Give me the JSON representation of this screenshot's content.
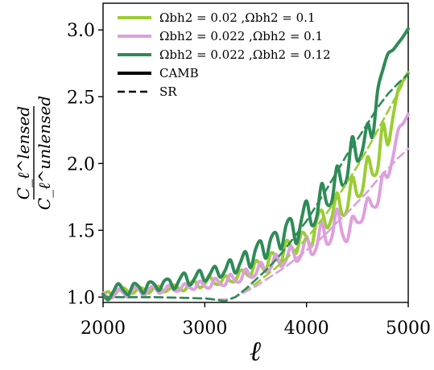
{
  "chart_data": {
    "type": "line",
    "xlabel": "ℓ",
    "ylabel_num": "C_ℓ^lensed",
    "ylabel_den": "C_ℓ^unlensed",
    "xlim": [
      2000,
      5000
    ],
    "ylim": [
      0.96,
      3.2
    ],
    "xticks": [
      2000,
      3000,
      4000,
      5000
    ],
    "xtick_labels": [
      "2000",
      "3000",
      "4000",
      "5000"
    ],
    "yticks": [
      1.0,
      1.5,
      2.0,
      2.5,
      3.0
    ],
    "ytick_labels": [
      "1.0",
      "1.5",
      "2.0",
      "2.5",
      "3.0"
    ],
    "grid": false,
    "legend_position": "top-left",
    "series": [
      {
        "name": "Ω_b h^2 = 0.02 ,Ω_b h^2 = 0.1",
        "legend_text": "Ωbh2 = 0.02 ,Ωbh2 = 0.1",
        "color": "#9acd32",
        "style": "solid",
        "method": "CAMB",
        "x": [
          2000,
          2050,
          2100,
          2150,
          2200,
          2250,
          2300,
          2350,
          2400,
          2450,
          2500,
          2550,
          2600,
          2650,
          2700,
          2750,
          2800,
          2850,
          2900,
          2950,
          3000,
          3050,
          3100,
          3150,
          3200,
          3250,
          3300,
          3350,
          3400,
          3450,
          3500,
          3550,
          3600,
          3650,
          3700,
          3750,
          3800,
          3850,
          3900,
          3950,
          4000,
          4050,
          4100,
          4150,
          4200,
          4250,
          4300,
          4350,
          4400,
          4450,
          4500,
          4550,
          4600,
          4650,
          4700,
          4750,
          4800,
          4850,
          4900,
          4950,
          5000
        ],
        "y": [
          1.02,
          1.04,
          1.01,
          1.05,
          1.07,
          1.04,
          1.03,
          1.07,
          1.06,
          1.03,
          1.07,
          1.08,
          1.04,
          1.06,
          1.09,
          1.06,
          1.05,
          1.1,
          1.12,
          1.07,
          1.1,
          1.15,
          1.1,
          1.1,
          1.16,
          1.12,
          1.12,
          1.2,
          1.18,
          1.16,
          1.27,
          1.24,
          1.2,
          1.33,
          1.3,
          1.26,
          1.42,
          1.38,
          1.33,
          1.48,
          1.45,
          1.38,
          1.58,
          1.65,
          1.52,
          1.6,
          1.78,
          1.62,
          1.66,
          1.9,
          1.76,
          1.8,
          2.05,
          1.92,
          1.96,
          2.3,
          2.14,
          2.35,
          2.55,
          2.62,
          2.68
        ]
      },
      {
        "name": "Ω_b h^2 = 0.022 ,Ω_b h^2 = 0.1",
        "legend_text": "Ωbh2 = 0.022 ,Ωbh2 = 0.1",
        "color": "#dda0dd",
        "style": "solid",
        "method": "CAMB",
        "x": [
          2000,
          2050,
          2100,
          2150,
          2200,
          2250,
          2300,
          2350,
          2400,
          2450,
          2500,
          2550,
          2600,
          2650,
          2700,
          2750,
          2800,
          2850,
          2900,
          2950,
          3000,
          3050,
          3100,
          3150,
          3200,
          3250,
          3300,
          3350,
          3400,
          3450,
          3500,
          3550,
          3600,
          3650,
          3700,
          3750,
          3800,
          3850,
          3900,
          3950,
          4000,
          4050,
          4100,
          4150,
          4200,
          4250,
          4300,
          4350,
          4400,
          4450,
          4500,
          4550,
          4600,
          4650,
          4700,
          4750,
          4800,
          4850,
          4900,
          4950,
          5000
        ],
        "y": [
          1.03,
          1.0,
          1.0,
          1.06,
          1.03,
          1.0,
          1.07,
          1.06,
          1.01,
          1.06,
          1.08,
          1.03,
          1.05,
          1.09,
          1.05,
          1.05,
          1.1,
          1.07,
          1.06,
          1.12,
          1.08,
          1.07,
          1.14,
          1.1,
          1.09,
          1.17,
          1.12,
          1.12,
          1.21,
          1.15,
          1.17,
          1.26,
          1.19,
          1.22,
          1.32,
          1.23,
          1.28,
          1.38,
          1.27,
          1.32,
          1.45,
          1.32,
          1.38,
          1.56,
          1.4,
          1.45,
          1.66,
          1.48,
          1.42,
          1.6,
          1.56,
          1.58,
          1.74,
          1.68,
          1.7,
          1.92,
          1.9,
          2.05,
          2.25,
          2.3,
          2.37
        ]
      },
      {
        "name": "Ω_b h^2 = 0.022 ,Ω_b h^2 = 0.12",
        "legend_text": "Ωbh2 = 0.022 ,Ωbh2 = 0.12",
        "color": "#2e8b57",
        "style": "solid",
        "method": "CAMB",
        "x": [
          2000,
          2050,
          2100,
          2150,
          2200,
          2250,
          2300,
          2350,
          2400,
          2450,
          2500,
          2550,
          2600,
          2650,
          2700,
          2750,
          2800,
          2850,
          2900,
          2950,
          3000,
          3050,
          3100,
          3150,
          3200,
          3250,
          3300,
          3350,
          3400,
          3450,
          3500,
          3550,
          3600,
          3650,
          3700,
          3750,
          3800,
          3850,
          3900,
          3950,
          4000,
          4050,
          4100,
          4150,
          4200,
          4250,
          4300,
          4350,
          4400,
          4450,
          4500,
          4550,
          4600,
          4650,
          4700,
          4750,
          4800,
          4850,
          4900,
          4950,
          5000
        ],
        "y": [
          1.02,
          0.98,
          1.04,
          1.1,
          1.05,
          1.02,
          1.1,
          1.08,
          1.03,
          1.11,
          1.1,
          1.05,
          1.12,
          1.13,
          1.06,
          1.13,
          1.18,
          1.09,
          1.14,
          1.2,
          1.12,
          1.17,
          1.23,
          1.15,
          1.2,
          1.28,
          1.18,
          1.26,
          1.34,
          1.22,
          1.36,
          1.42,
          1.29,
          1.44,
          1.48,
          1.36,
          1.54,
          1.58,
          1.4,
          1.58,
          1.72,
          1.54,
          1.6,
          1.85,
          1.7,
          1.72,
          1.98,
          1.84,
          1.9,
          2.2,
          2.02,
          2.1,
          2.3,
          2.2,
          2.55,
          2.7,
          2.82,
          2.85,
          2.9,
          2.95,
          3.01
        ]
      },
      {
        "name": "Ω_b h^2 = 0.02 ,Ω_b h^2 = 0.1 (SR)",
        "color": "#9acd32",
        "style": "dashed",
        "method": "SR",
        "x": [
          2000,
          2500,
          3000,
          3200,
          3300,
          3400,
          3500,
          3600,
          3700,
          3800,
          3900,
          4000,
          4100,
          4200,
          4300,
          4400,
          4500,
          4600,
          4700,
          4800,
          4900,
          5000
        ],
        "y": [
          1.0,
          1.0,
          0.99,
          0.98,
          1.0,
          1.05,
          1.1,
          1.16,
          1.22,
          1.29,
          1.36,
          1.44,
          1.53,
          1.63,
          1.74,
          1.86,
          1.98,
          2.11,
          2.25,
          2.39,
          2.53,
          2.68
        ]
      },
      {
        "name": "Ω_b h^2 = 0.022 ,Ω_b h^2 = 0.1 (SR)",
        "color": "#dda0dd",
        "style": "dashed",
        "method": "SR",
        "x": [
          2000,
          2500,
          3000,
          3200,
          3300,
          3400,
          3500,
          3600,
          3700,
          3800,
          3900,
          4000,
          4100,
          4200,
          4300,
          4400,
          4500,
          4600,
          4700,
          4800,
          4900,
          5000
        ],
        "y": [
          1.0,
          1.0,
          0.99,
          0.98,
          1.0,
          1.04,
          1.08,
          1.13,
          1.18,
          1.23,
          1.29,
          1.35,
          1.41,
          1.48,
          1.56,
          1.63,
          1.71,
          1.79,
          1.88,
          1.96,
          2.04,
          2.11
        ]
      },
      {
        "name": "Ω_b h^2 = 0.022 ,Ω_b h^2 = 0.12 (SR)",
        "color": "#2e8b57",
        "style": "dashed",
        "method": "SR",
        "x": [
          2000,
          2500,
          3000,
          3200,
          3300,
          3400,
          3500,
          3600,
          3700,
          3800,
          3900,
          4000,
          4100,
          4200,
          4300,
          4400,
          4500,
          4600,
          4700,
          4800,
          4900,
          5000
        ],
        "y": [
          1.0,
          1.0,
          0.99,
          0.97,
          1.0,
          1.06,
          1.13,
          1.2,
          1.28,
          1.37,
          1.47,
          1.57,
          1.69,
          1.81,
          1.94,
          2.07,
          2.18,
          2.3,
          2.42,
          2.52,
          2.6,
          2.67
        ]
      }
    ],
    "legend": [
      {
        "label": "Ωbh2 = 0.02 ,Ωbh2 = 0.1",
        "color": "#9acd32",
        "style": "solid"
      },
      {
        "label": "Ωbh2 = 0.022 ,Ωbh2 = 0.1",
        "color": "#dda0dd",
        "style": "solid"
      },
      {
        "label": "Ωbh2 = 0.022 ,Ωbh2 = 0.12",
        "color": "#2e8b57",
        "style": "solid"
      },
      {
        "label": "CAMB",
        "color": "#000000",
        "style": "solid"
      },
      {
        "label": "SR",
        "color": "#000000",
        "style": "dashed"
      }
    ]
  }
}
